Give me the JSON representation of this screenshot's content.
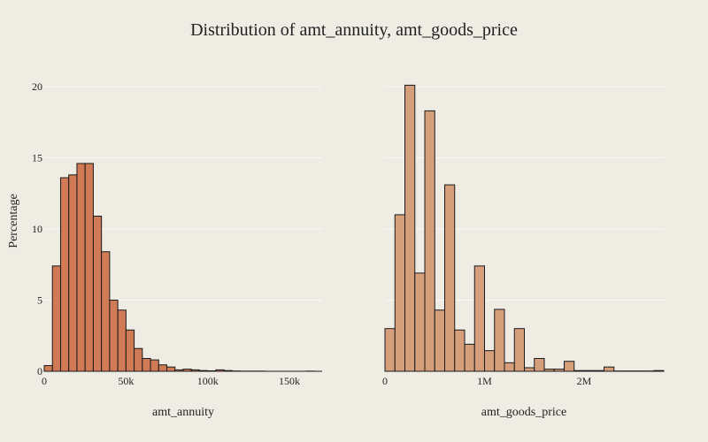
{
  "chart_data": {
    "type": "histogram",
    "title": "Distribution of amt_annuity, amt_goods_price",
    "ylabel": "Percentage",
    "ylim": [
      0,
      22
    ],
    "yticks": [
      0,
      5,
      10,
      15,
      20
    ],
    "grid": true,
    "panels": [
      {
        "xlabel": "amt_annuity",
        "xlim": [
          0,
          170000
        ],
        "xticks": [
          0,
          50000,
          100000,
          150000
        ],
        "xtick_labels": [
          "0",
          "50k",
          "100k",
          "150k"
        ],
        "bin_width": 5000,
        "bin_start": 0,
        "color": "#d17a56",
        "values": [
          0.4,
          7.4,
          13.6,
          13.8,
          14.6,
          14.6,
          10.9,
          8.4,
          5.0,
          4.3,
          2.9,
          1.6,
          0.9,
          0.8,
          0.45,
          0.3,
          0.1,
          0.15,
          0.1,
          0.05,
          0.03,
          0.1,
          0.05,
          0.02,
          0.01,
          0.01,
          0.01,
          0,
          0,
          0,
          0,
          0,
          0.01
        ]
      },
      {
        "xlabel": "amt_goods_price",
        "xlim": [
          0,
          2800000
        ],
        "xticks": [
          0,
          1000000,
          2000000
        ],
        "xtick_labels": [
          "0",
          "1M",
          "2M"
        ],
        "bin_width": 100000,
        "bin_start": 0,
        "color": "#d69f7c",
        "values": [
          3.0,
          11.0,
          20.1,
          6.9,
          18.3,
          4.3,
          13.1,
          2.9,
          1.9,
          7.4,
          1.45,
          4.35,
          0.6,
          3.0,
          0.25,
          0.9,
          0.15,
          0.15,
          0.7,
          0.05,
          0.05,
          0.05,
          0.3,
          0.02,
          0.02,
          0.02,
          0.02,
          0.05
        ]
      }
    ]
  }
}
